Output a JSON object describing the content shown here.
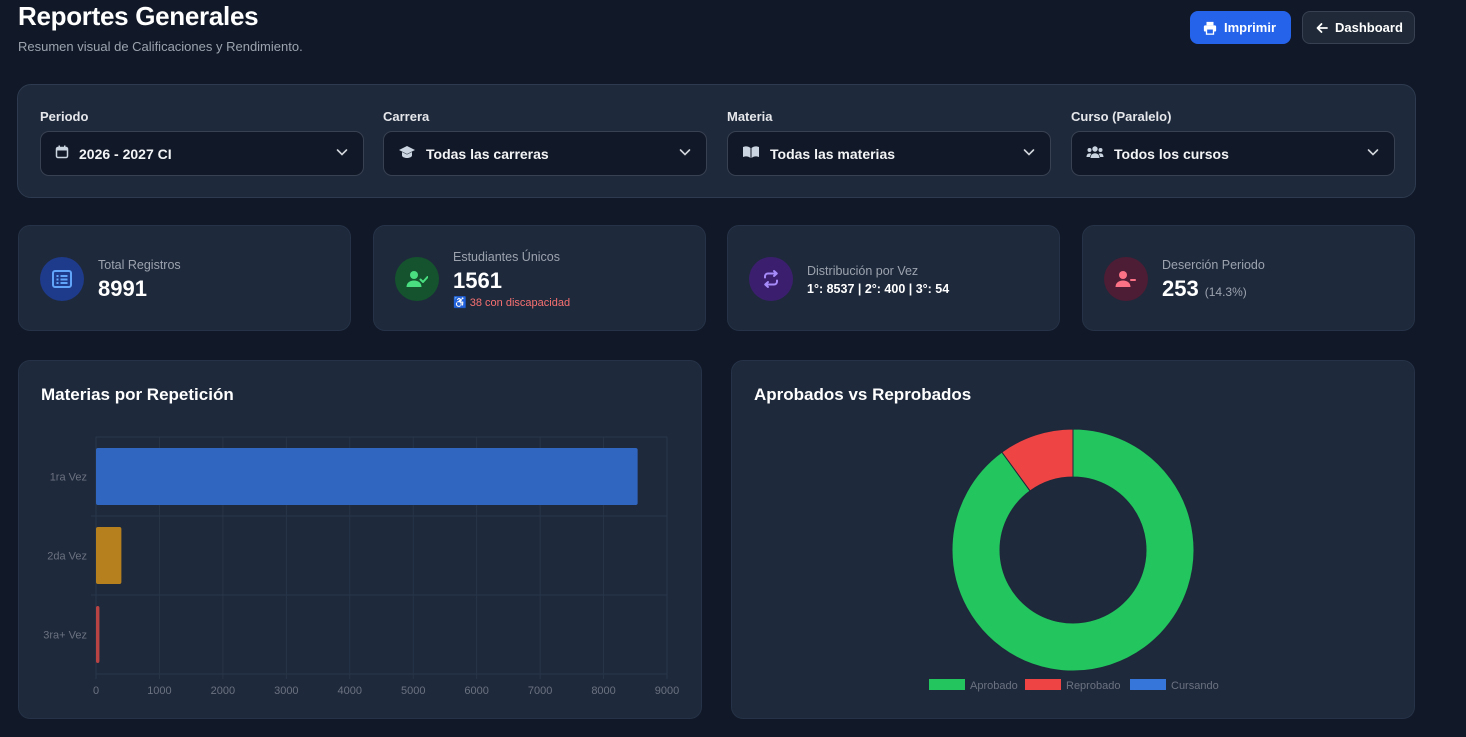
{
  "header": {
    "title": "Reportes Generales",
    "subtitle": "Resumen visual de Calificaciones y Rendimiento.",
    "print_label": "Imprimir",
    "dashboard_label": "Dashboard"
  },
  "filters": [
    {
      "label": "Periodo",
      "value": "2026 - 2027 CI",
      "icon": "calendar-icon"
    },
    {
      "label": "Carrera",
      "value": "Todas las carreras",
      "icon": "graduation-cap-icon"
    },
    {
      "label": "Materia",
      "value": "Todas las materias",
      "icon": "book-icon"
    },
    {
      "label": "Curso (Paralelo)",
      "value": "Todos los cursos",
      "icon": "users-icon"
    }
  ],
  "stats": {
    "total": {
      "label": "Total Registros",
      "value": "8991"
    },
    "students": {
      "label": "Estudiantes Únicos",
      "value": "1561",
      "sub": "38 con discapacidad"
    },
    "distribution": {
      "label": "Distribución por Vez",
      "value": "1°: 8537 | 2°: 400 | 3°: 54"
    },
    "dropout": {
      "label": "Deserción Periodo",
      "value": "253",
      "pct": "(14.3%)"
    }
  },
  "colors": {
    "accent": "#2563eb",
    "first": "#3166c0",
    "second": "#b7801f",
    "third": "#b94343",
    "approved": "#22c55e",
    "failed": "#ef4444",
    "ongoing": "#3b82f6"
  },
  "panels": {
    "bar_title": "Materias por Repetición",
    "donut_title": "Aprobados vs Reprobados"
  },
  "chart_data": [
    {
      "type": "bar",
      "orientation": "horizontal",
      "title": "Materias por Repetición",
      "categories": [
        "1ra Vez",
        "2da Vez",
        "3ra+ Vez"
      ],
      "values": [
        8537,
        400,
        54
      ],
      "xlim": [
        0,
        9000
      ],
      "xticks": [
        0,
        1000,
        2000,
        3000,
        4000,
        5000,
        6000,
        7000,
        8000,
        9000
      ],
      "grid": true
    },
    {
      "type": "pie",
      "donut": true,
      "title": "Aprobados vs Reprobados",
      "categories": [
        "Aprobado",
        "Reprobado",
        "Cursando"
      ],
      "values": [
        90,
        10,
        0
      ],
      "legend": "bottom"
    }
  ]
}
